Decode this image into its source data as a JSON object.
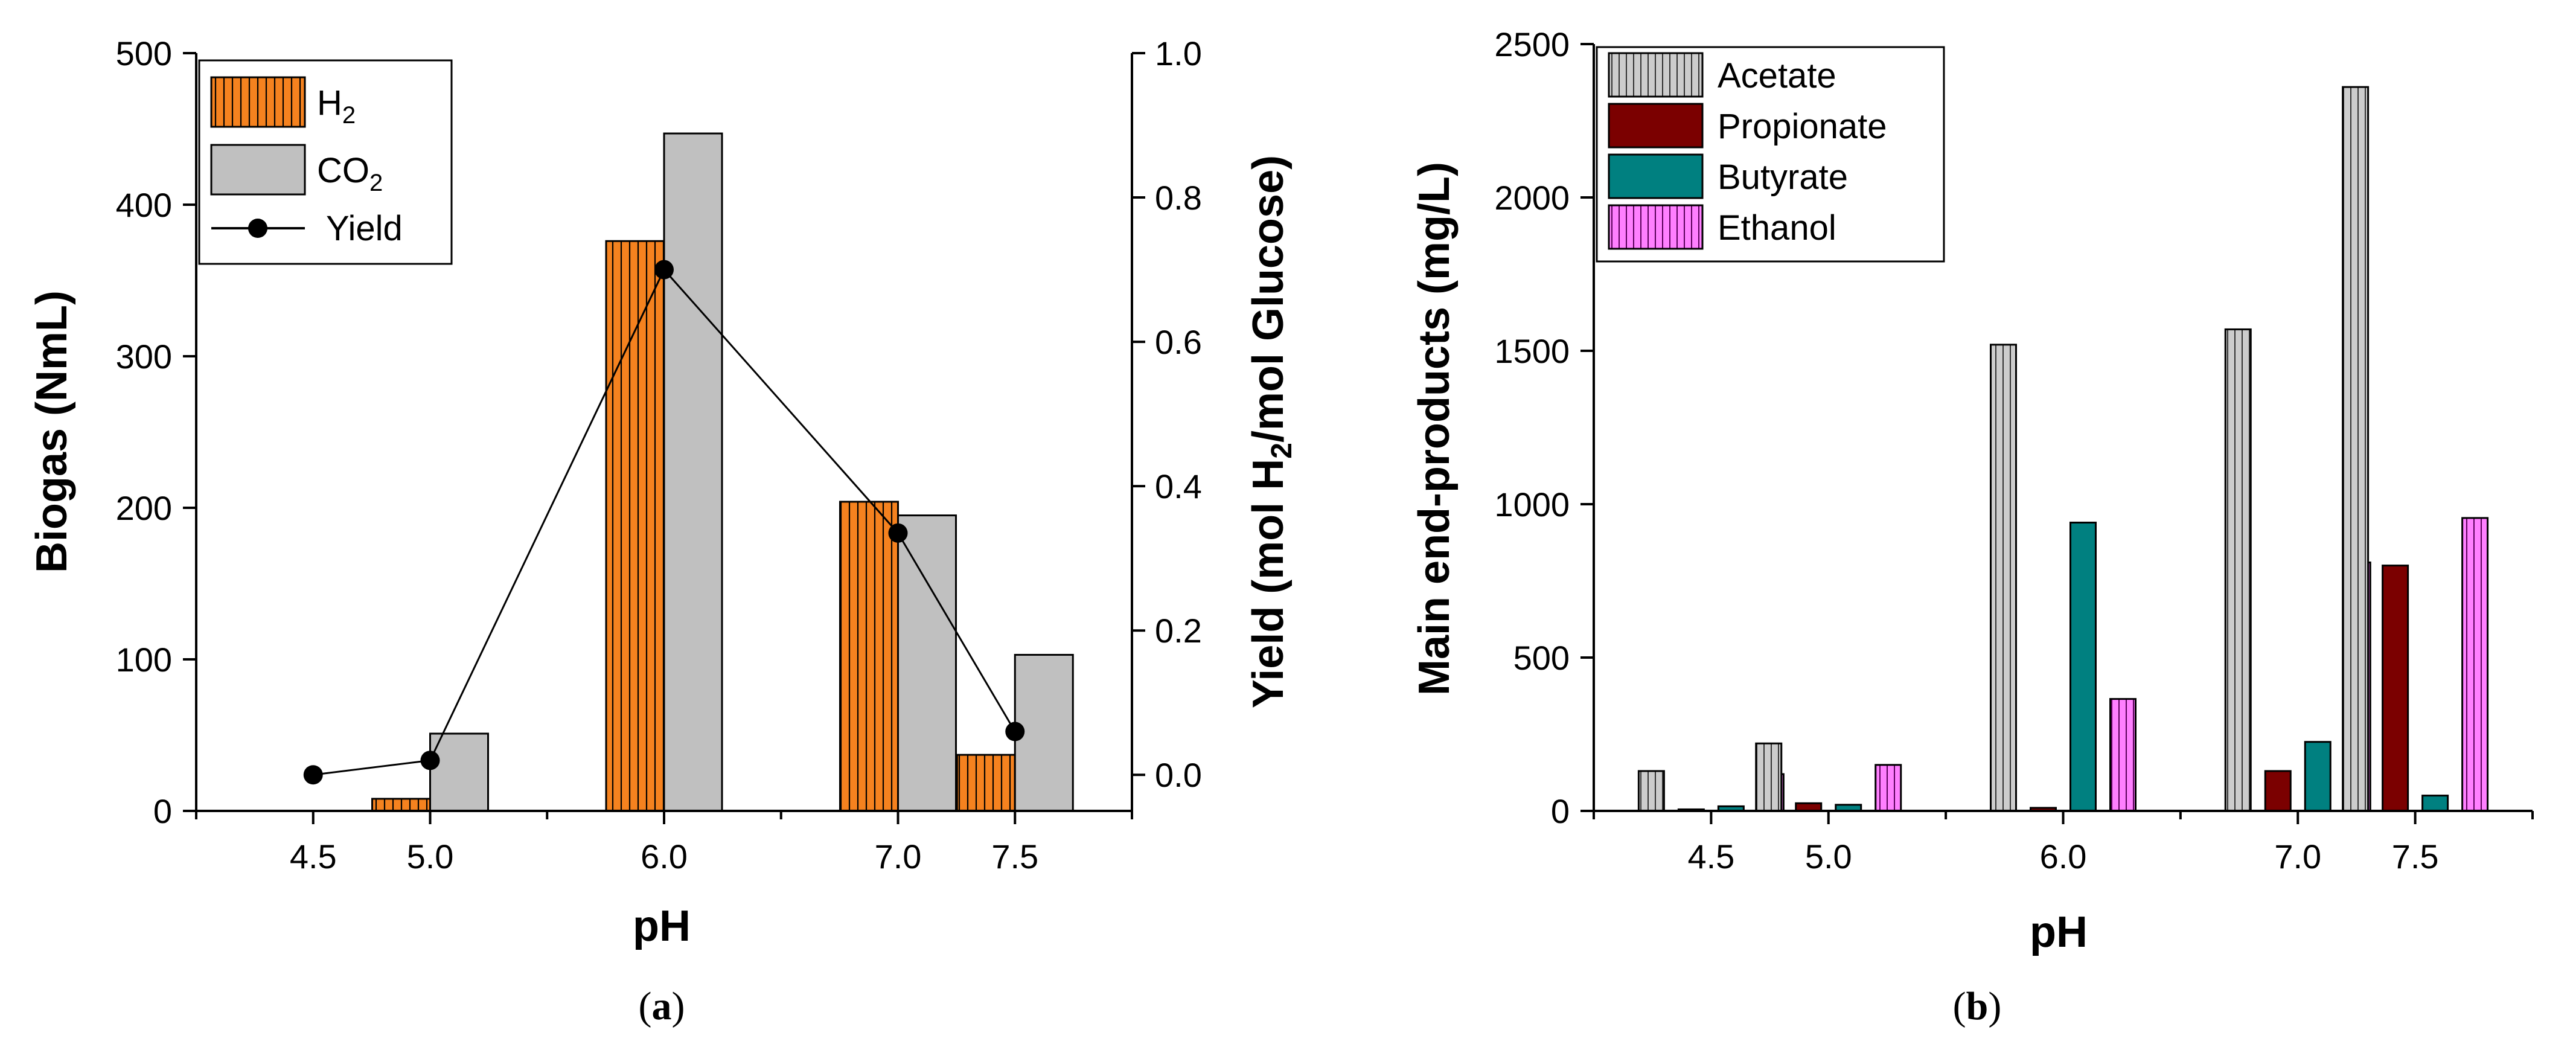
{
  "colors": {
    "h2": "#f5821f",
    "co2": "#c0c0c0",
    "acetate": "#cccccc",
    "propionate": "#7b0000",
    "butyrate": "#008080",
    "ethanol": "#ff7fff",
    "axis": "#000000"
  },
  "panels": {
    "a": {
      "caption_open": "(",
      "caption_letter": "a",
      "caption_close": ")",
      "legend": {
        "h2": "H",
        "h2_sub": "2",
        "co2": "CO",
        "co2_sub": "2",
        "yield": "Yield"
      },
      "ylabel_left": "Biogas (NmL)",
      "ylabel_right_pre": "Yield (mol H",
      "ylabel_right_sub": "2",
      "ylabel_right_post": "/mol Glucose)",
      "xlabel": "pH"
    },
    "b": {
      "caption_open": "(",
      "caption_letter": "b",
      "caption_close": ")",
      "ylabel": "Main end-products (mg/L)",
      "xlabel": "pH"
    }
  },
  "chart_data": [
    {
      "type": "bar",
      "title": "",
      "xlabel": "pH",
      "ylabel": "Biogas (NmL)",
      "ylabel_right": "Yield (mol H2/mol Glucose)",
      "x": [
        4.5,
        5.0,
        6.0,
        7.0,
        7.5
      ],
      "x_tick_labels": [
        "4.5",
        "5.0",
        "6.0",
        "7.0",
        "7.5"
      ],
      "xlim": [
        4.0,
        8.0
      ],
      "ylim": [
        0,
        500
      ],
      "yticks": [
        0,
        100,
        200,
        300,
        400,
        500
      ],
      "y2lim": [
        -0.05,
        1.0
      ],
      "y2ticks": [
        0.0,
        0.2,
        0.4,
        0.6,
        0.8,
        1.0
      ],
      "y2_tick_labels": [
        "0.0",
        "0.2",
        "0.4",
        "0.6",
        "0.8",
        "1.0"
      ],
      "series": [
        {
          "name": "H2",
          "kind": "bar",
          "values": [
            0,
            8,
            376,
            204,
            37
          ]
        },
        {
          "name": "CO2",
          "kind": "bar",
          "values": [
            0,
            51,
            447,
            195,
            103
          ]
        },
        {
          "name": "Yield",
          "kind": "line",
          "axis": "right",
          "values": [
            0.0,
            0.02,
            0.7,
            0.335,
            0.06
          ]
        }
      ],
      "legend_position": "top-left"
    },
    {
      "type": "bar",
      "title": "",
      "xlabel": "pH",
      "ylabel": "Main end-products (mg/L)",
      "x": [
        4.5,
        5.0,
        6.0,
        7.0,
        7.5
      ],
      "x_tick_labels": [
        "4.5",
        "5.0",
        "6.0",
        "7.0",
        "7.5"
      ],
      "xlim": [
        4.0,
        8.0
      ],
      "ylim": [
        0,
        2500
      ],
      "yticks": [
        0,
        500,
        1000,
        1500,
        2000,
        2500
      ],
      "series": [
        {
          "name": "Acetate",
          "values": [
            130,
            220,
            1520,
            1570,
            2360
          ]
        },
        {
          "name": "Propionate",
          "values": [
            5,
            25,
            10,
            130,
            800
          ]
        },
        {
          "name": "Butyrate",
          "values": [
            15,
            20,
            940,
            225,
            50
          ]
        },
        {
          "name": "Ethanol",
          "values": [
            120,
            150,
            365,
            810,
            955
          ]
        }
      ],
      "legend_position": "top-left"
    }
  ]
}
